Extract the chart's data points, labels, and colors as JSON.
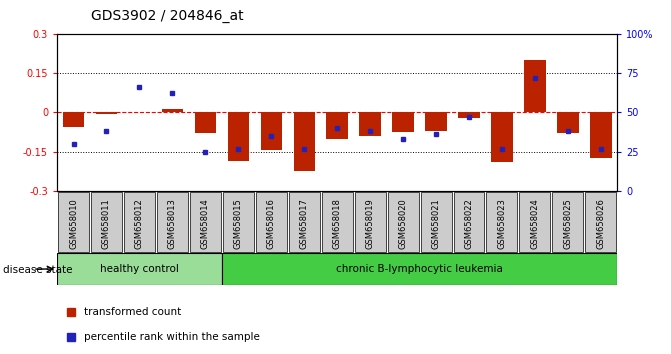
{
  "title": "GDS3902 / 204846_at",
  "samples": [
    "GSM658010",
    "GSM658011",
    "GSM658012",
    "GSM658013",
    "GSM658014",
    "GSM658015",
    "GSM658016",
    "GSM658017",
    "GSM658018",
    "GSM658019",
    "GSM658020",
    "GSM658021",
    "GSM658022",
    "GSM658023",
    "GSM658024",
    "GSM658025",
    "GSM658026"
  ],
  "red_values": [
    -0.055,
    -0.005,
    0.003,
    0.013,
    -0.08,
    -0.185,
    -0.145,
    -0.225,
    -0.1,
    -0.09,
    -0.075,
    -0.07,
    -0.02,
    -0.19,
    0.2,
    -0.08,
    -0.175
  ],
  "blue_values": [
    30,
    38,
    66,
    62,
    25,
    27,
    35,
    27,
    40,
    38,
    33,
    36,
    47,
    27,
    72,
    38,
    27
  ],
  "healthy_count": 5,
  "ylim_left": [
    -0.3,
    0.3
  ],
  "ylim_right": [
    0,
    100
  ],
  "yticks_left": [
    -0.3,
    -0.15,
    0,
    0.15,
    0.3
  ],
  "yticks_right": [
    0,
    25,
    50,
    75,
    100
  ],
  "ytick_labels_right": [
    "0",
    "25",
    "50",
    "75",
    "100%"
  ],
  "hlines": [
    0.15,
    0.0,
    -0.15
  ],
  "hline_styles": [
    "dotted",
    "dashed",
    "dotted"
  ],
  "hline_colors": [
    "black",
    "red",
    "black"
  ],
  "bar_color": "#BB2200",
  "dot_color": "#2222BB",
  "healthy_color": "#99DD99",
  "leukemia_color": "#44CC44",
  "xtick_bg_color": "#CCCCCC",
  "group_label": "disease state",
  "group1_label": "healthy control",
  "group2_label": "chronic B-lymphocytic leukemia",
  "legend1": "transformed count",
  "legend2": "percentile rank within the sample",
  "bar_width": 0.65
}
